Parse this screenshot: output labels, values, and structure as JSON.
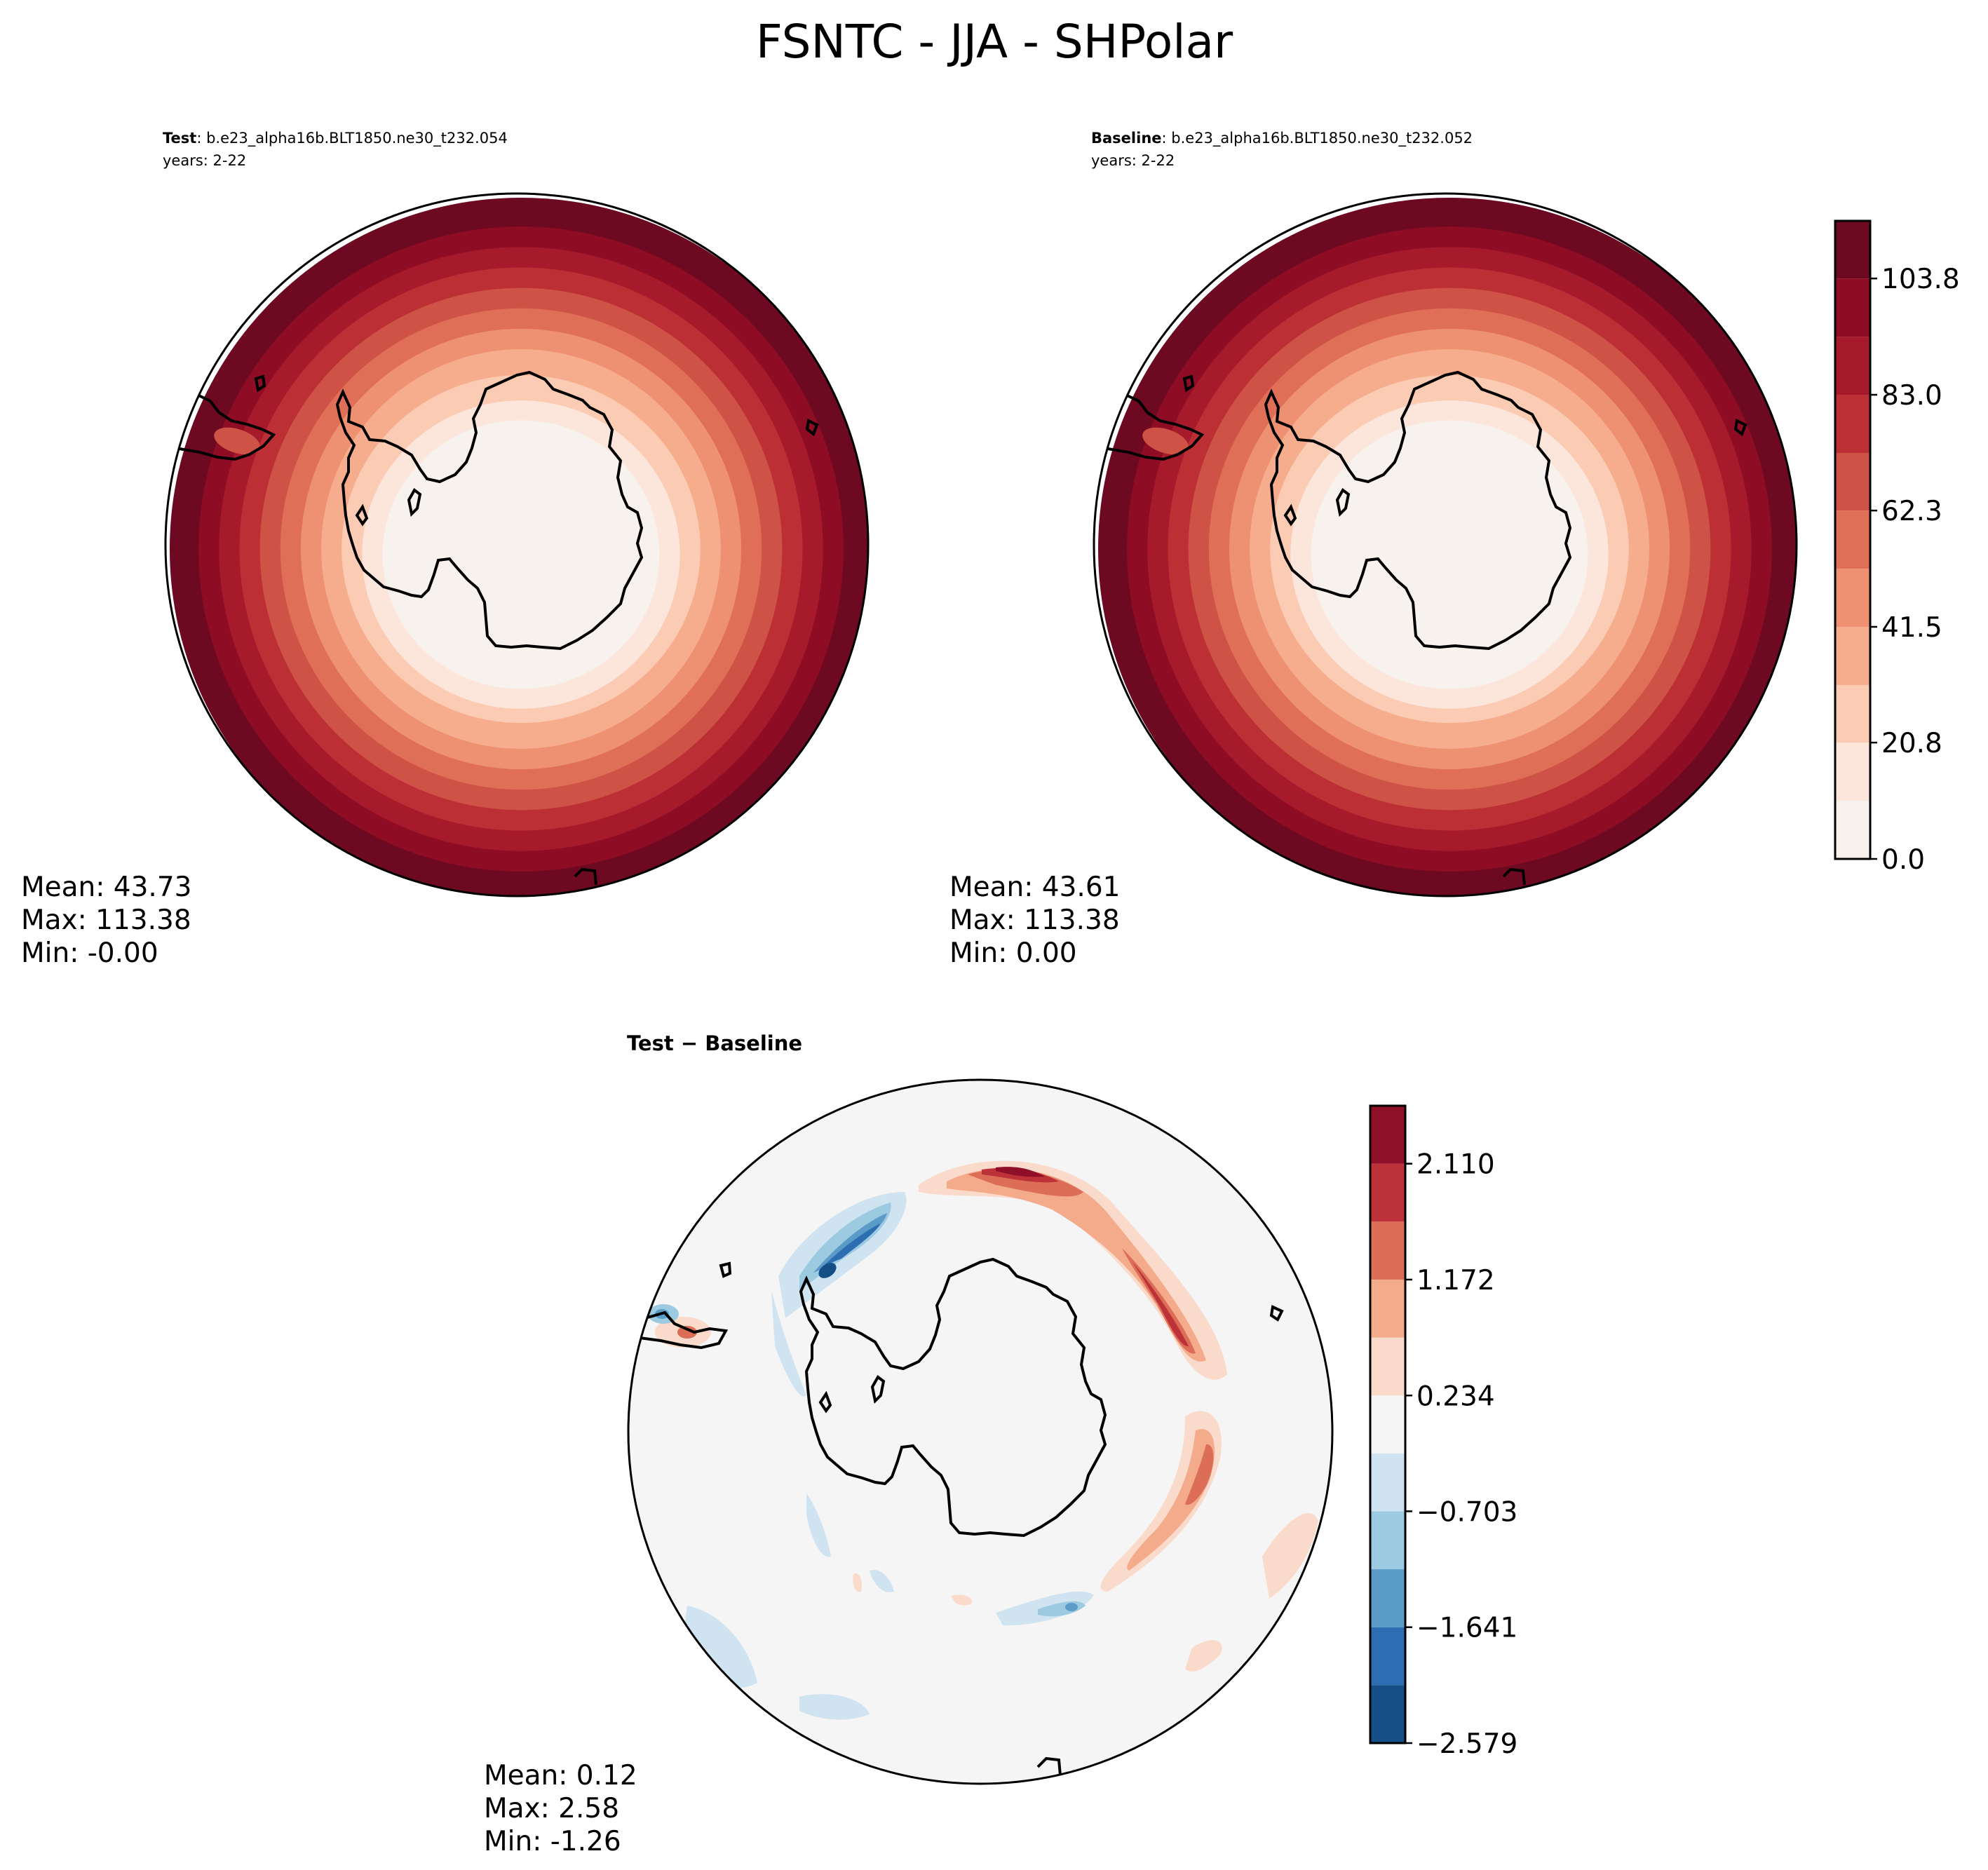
{
  "figure": {
    "title": "FSNTC - JJA - SHPolar"
  },
  "colors": {
    "reds": [
      "#f8f2ee",
      "#fce5da",
      "#fbcbb4",
      "#f6ad8d",
      "#ee9072",
      "#e06f57",
      "#cf5246",
      "#bc2f35",
      "#a61a2c",
      "#8e0d25",
      "#6d0a21"
    ],
    "diff": [
      "#164f86",
      "#2c6eb1",
      "#5a9bc8",
      "#9ccae0",
      "#cfe4f0",
      "#f5f5f5",
      "#fadbcb",
      "#f4ab8c",
      "#dc6e58",
      "#bd3138",
      "#8f0f28"
    ],
    "coast": "#000000"
  },
  "icons": {
    "map_outline": "antarctica-coastline"
  },
  "chart_data": [
    {
      "type": "heatmap",
      "projection": "south-polar-stereographic",
      "title_bold": "Test",
      "title_rest": ": b.e23_alpha16b.BLT1850.ne30_t232.054",
      "subtitle": "years: 2-22",
      "stats": {
        "mean": "Mean: 43.73",
        "max": "Max: 113.38",
        "min": "Min: -0.00"
      },
      "levels": [
        0.0,
        10.4,
        20.8,
        31.1,
        41.5,
        51.9,
        62.3,
        72.6,
        83.0,
        93.4,
        103.8,
        114.1
      ],
      "field": "concentric rings increasing from ~0 at pole to ~113 at map edge"
    },
    {
      "type": "heatmap",
      "projection": "south-polar-stereographic",
      "title_bold": "Baseline",
      "title_rest": ": b.e23_alpha16b.BLT1850.ne30_t232.052",
      "subtitle": "years: 2-22",
      "stats": {
        "mean": "Mean: 43.61",
        "max": "Max: 113.38",
        "min": "Min:  0.00"
      },
      "colorbar": {
        "ticks": [
          "0.0",
          "20.8",
          "41.5",
          "62.3",
          "83.0",
          "103.8"
        ],
        "levels": [
          0.0,
          10.4,
          20.8,
          31.1,
          41.5,
          51.9,
          62.3,
          72.6,
          83.0,
          93.4,
          103.8,
          114.1
        ]
      }
    },
    {
      "type": "heatmap",
      "projection": "south-polar-stereographic",
      "title": "Test − Baseline",
      "stats": {
        "mean": "Mean:  0.12",
        "max": "Max:  2.58",
        "min": "Min: -1.26"
      },
      "colorbar": {
        "ticks": [
          "−2.579",
          "−1.641",
          "−0.703",
          "0.234",
          "1.172",
          "2.110"
        ],
        "levels": [
          -2.579,
          -2.11,
          -1.641,
          -1.172,
          -0.703,
          -0.234,
          0.234,
          0.703,
          1.172,
          1.641,
          2.11,
          2.579
        ]
      }
    }
  ]
}
